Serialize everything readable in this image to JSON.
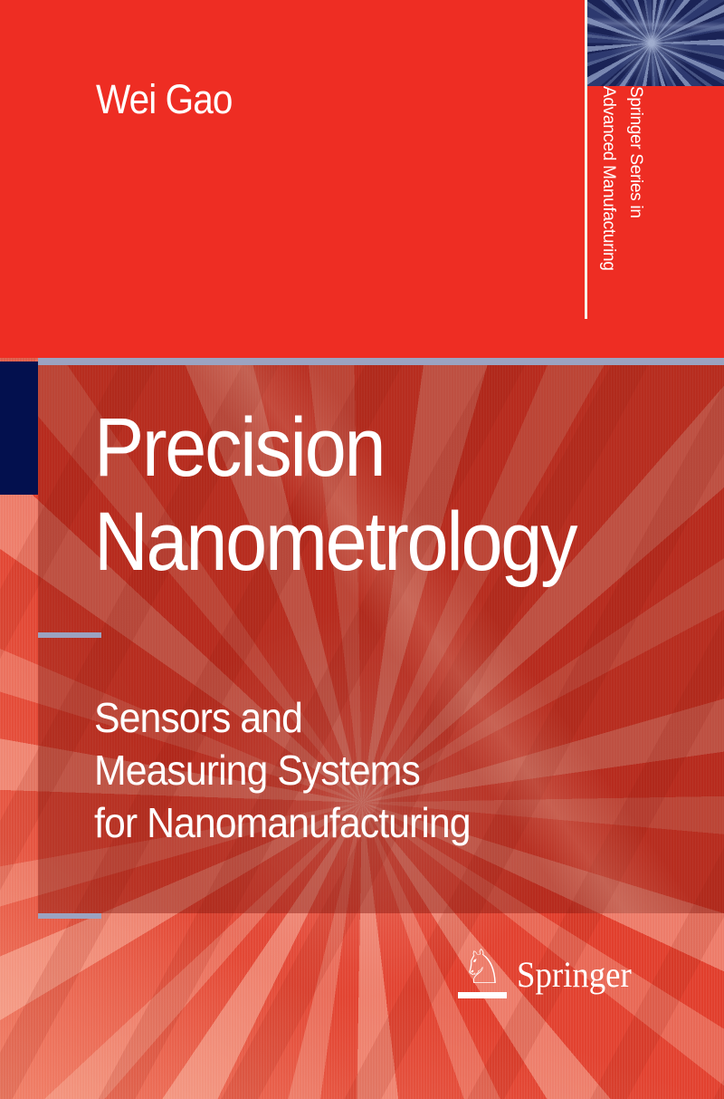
{
  "cover": {
    "author": "Wei Gao",
    "series": {
      "line1": "Springer Series in",
      "line2": "Advanced Manufacturing"
    },
    "title": {
      "line1": "Precision",
      "line2": "Nanometrology"
    },
    "subtitle": {
      "line1": "Sensors and",
      "line2": "Measuring Systems",
      "line3": "for Nanomanufacturing"
    },
    "publisher": {
      "name": "Springer",
      "logo_icon": "knight-chess-piece",
      "knight_glyph": "♘"
    },
    "colors": {
      "background_red": "#ee2d23",
      "panel_red": "#bb3327",
      "navy_accent": "#03104e",
      "divider_gray": "#9ba3c1",
      "text": "#ffffff"
    }
  }
}
